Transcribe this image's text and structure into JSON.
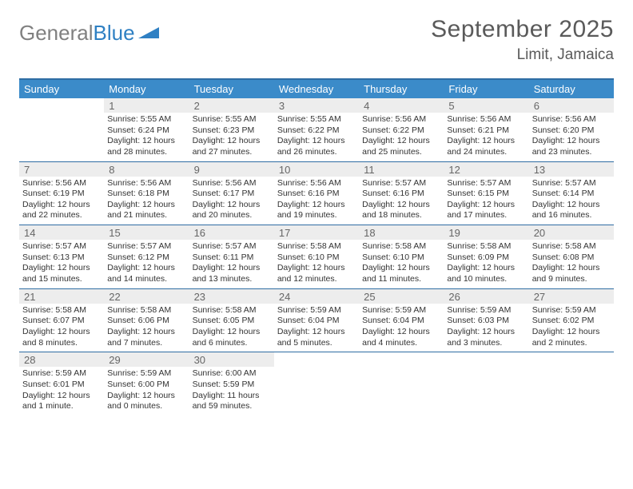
{
  "brand": {
    "part1": "General",
    "part2": "Blue"
  },
  "title": "September 2025",
  "location": "Limit, Jamaica",
  "colors": {
    "header_bg": "#3b8bc9",
    "rule": "#2f6da3",
    "daynum_bg": "#ededed",
    "text": "#333333",
    "title_text": "#5a5a5a",
    "logo_gray": "#808080",
    "logo_blue": "#2f80c3",
    "page_bg": "#ffffff"
  },
  "day_headers": [
    "Sunday",
    "Monday",
    "Tuesday",
    "Wednesday",
    "Thursday",
    "Friday",
    "Saturday"
  ],
  "weeks": [
    [
      {
        "n": "",
        "sr": "",
        "ss": "",
        "dl": ""
      },
      {
        "n": "1",
        "sr": "Sunrise: 5:55 AM",
        "ss": "Sunset: 6:24 PM",
        "dl": "Daylight: 12 hours and 28 minutes."
      },
      {
        "n": "2",
        "sr": "Sunrise: 5:55 AM",
        "ss": "Sunset: 6:23 PM",
        "dl": "Daylight: 12 hours and 27 minutes."
      },
      {
        "n": "3",
        "sr": "Sunrise: 5:55 AM",
        "ss": "Sunset: 6:22 PM",
        "dl": "Daylight: 12 hours and 26 minutes."
      },
      {
        "n": "4",
        "sr": "Sunrise: 5:56 AM",
        "ss": "Sunset: 6:22 PM",
        "dl": "Daylight: 12 hours and 25 minutes."
      },
      {
        "n": "5",
        "sr": "Sunrise: 5:56 AM",
        "ss": "Sunset: 6:21 PM",
        "dl": "Daylight: 12 hours and 24 minutes."
      },
      {
        "n": "6",
        "sr": "Sunrise: 5:56 AM",
        "ss": "Sunset: 6:20 PM",
        "dl": "Daylight: 12 hours and 23 minutes."
      }
    ],
    [
      {
        "n": "7",
        "sr": "Sunrise: 5:56 AM",
        "ss": "Sunset: 6:19 PM",
        "dl": "Daylight: 12 hours and 22 minutes."
      },
      {
        "n": "8",
        "sr": "Sunrise: 5:56 AM",
        "ss": "Sunset: 6:18 PM",
        "dl": "Daylight: 12 hours and 21 minutes."
      },
      {
        "n": "9",
        "sr": "Sunrise: 5:56 AM",
        "ss": "Sunset: 6:17 PM",
        "dl": "Daylight: 12 hours and 20 minutes."
      },
      {
        "n": "10",
        "sr": "Sunrise: 5:56 AM",
        "ss": "Sunset: 6:16 PM",
        "dl": "Daylight: 12 hours and 19 minutes."
      },
      {
        "n": "11",
        "sr": "Sunrise: 5:57 AM",
        "ss": "Sunset: 6:16 PM",
        "dl": "Daylight: 12 hours and 18 minutes."
      },
      {
        "n": "12",
        "sr": "Sunrise: 5:57 AM",
        "ss": "Sunset: 6:15 PM",
        "dl": "Daylight: 12 hours and 17 minutes."
      },
      {
        "n": "13",
        "sr": "Sunrise: 5:57 AM",
        "ss": "Sunset: 6:14 PM",
        "dl": "Daylight: 12 hours and 16 minutes."
      }
    ],
    [
      {
        "n": "14",
        "sr": "Sunrise: 5:57 AM",
        "ss": "Sunset: 6:13 PM",
        "dl": "Daylight: 12 hours and 15 minutes."
      },
      {
        "n": "15",
        "sr": "Sunrise: 5:57 AM",
        "ss": "Sunset: 6:12 PM",
        "dl": "Daylight: 12 hours and 14 minutes."
      },
      {
        "n": "16",
        "sr": "Sunrise: 5:57 AM",
        "ss": "Sunset: 6:11 PM",
        "dl": "Daylight: 12 hours and 13 minutes."
      },
      {
        "n": "17",
        "sr": "Sunrise: 5:58 AM",
        "ss": "Sunset: 6:10 PM",
        "dl": "Daylight: 12 hours and 12 minutes."
      },
      {
        "n": "18",
        "sr": "Sunrise: 5:58 AM",
        "ss": "Sunset: 6:10 PM",
        "dl": "Daylight: 12 hours and 11 minutes."
      },
      {
        "n": "19",
        "sr": "Sunrise: 5:58 AM",
        "ss": "Sunset: 6:09 PM",
        "dl": "Daylight: 12 hours and 10 minutes."
      },
      {
        "n": "20",
        "sr": "Sunrise: 5:58 AM",
        "ss": "Sunset: 6:08 PM",
        "dl": "Daylight: 12 hours and 9 minutes."
      }
    ],
    [
      {
        "n": "21",
        "sr": "Sunrise: 5:58 AM",
        "ss": "Sunset: 6:07 PM",
        "dl": "Daylight: 12 hours and 8 minutes."
      },
      {
        "n": "22",
        "sr": "Sunrise: 5:58 AM",
        "ss": "Sunset: 6:06 PM",
        "dl": "Daylight: 12 hours and 7 minutes."
      },
      {
        "n": "23",
        "sr": "Sunrise: 5:58 AM",
        "ss": "Sunset: 6:05 PM",
        "dl": "Daylight: 12 hours and 6 minutes."
      },
      {
        "n": "24",
        "sr": "Sunrise: 5:59 AM",
        "ss": "Sunset: 6:04 PM",
        "dl": "Daylight: 12 hours and 5 minutes."
      },
      {
        "n": "25",
        "sr": "Sunrise: 5:59 AM",
        "ss": "Sunset: 6:04 PM",
        "dl": "Daylight: 12 hours and 4 minutes."
      },
      {
        "n": "26",
        "sr": "Sunrise: 5:59 AM",
        "ss": "Sunset: 6:03 PM",
        "dl": "Daylight: 12 hours and 3 minutes."
      },
      {
        "n": "27",
        "sr": "Sunrise: 5:59 AM",
        "ss": "Sunset: 6:02 PM",
        "dl": "Daylight: 12 hours and 2 minutes."
      }
    ],
    [
      {
        "n": "28",
        "sr": "Sunrise: 5:59 AM",
        "ss": "Sunset: 6:01 PM",
        "dl": "Daylight: 12 hours and 1 minute."
      },
      {
        "n": "29",
        "sr": "Sunrise: 5:59 AM",
        "ss": "Sunset: 6:00 PM",
        "dl": "Daylight: 12 hours and 0 minutes."
      },
      {
        "n": "30",
        "sr": "Sunrise: 6:00 AM",
        "ss": "Sunset: 5:59 PM",
        "dl": "Daylight: 11 hours and 59 minutes."
      },
      {
        "n": "",
        "sr": "",
        "ss": "",
        "dl": ""
      },
      {
        "n": "",
        "sr": "",
        "ss": "",
        "dl": ""
      },
      {
        "n": "",
        "sr": "",
        "ss": "",
        "dl": ""
      },
      {
        "n": "",
        "sr": "",
        "ss": "",
        "dl": ""
      }
    ]
  ]
}
